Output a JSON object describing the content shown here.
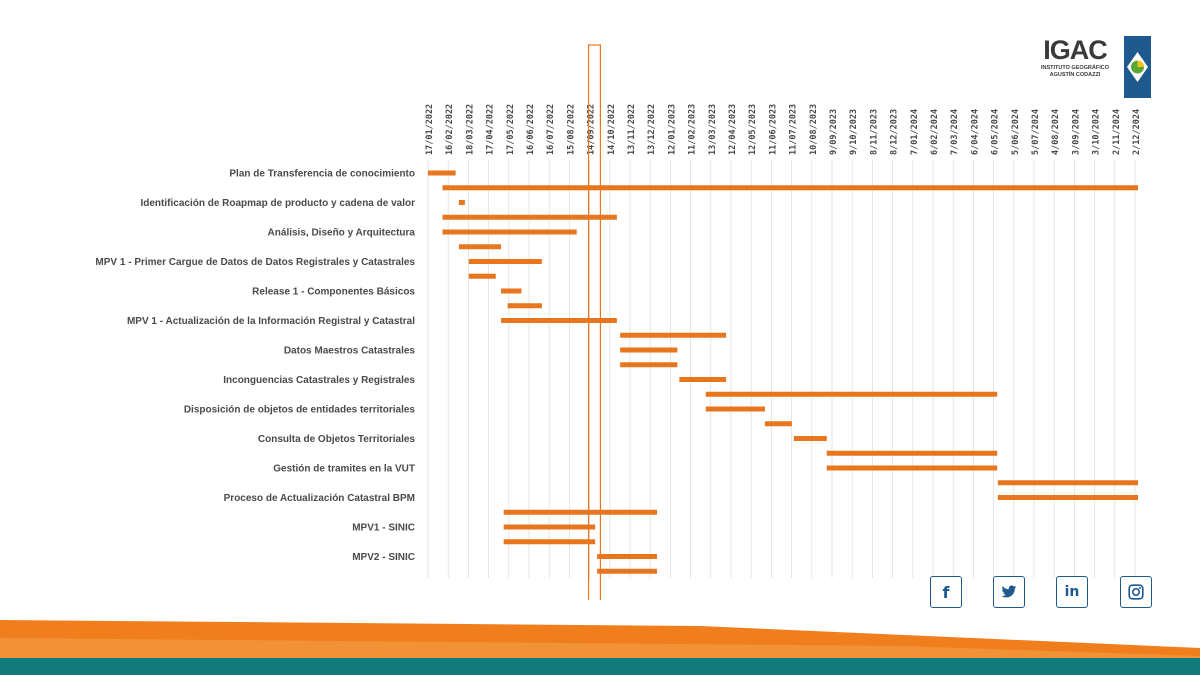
{
  "logo": {
    "name": "IGAC",
    "line1": "INSTITUTO GEOGRÁFICO",
    "line2": "AGUSTÍN CODAZZI",
    "colors": {
      "blue": "#1f5a8f",
      "green": "#5aa832",
      "yellow": "#f0c419"
    }
  },
  "colors": {
    "bar": "#e8761e",
    "highlight": "#e8761e",
    "text": "#4a4a4a",
    "grid": "#dcdcdc",
    "footer_teal": "#127a78",
    "footer_orange": "#f07e1c"
  },
  "chart_data": {
    "type": "gantt",
    "date_ticks": [
      "17/01/2022",
      "16/02/2022",
      "18/03/2022",
      "17/04/2022",
      "17/05/2022",
      "16/06/2022",
      "16/07/2022",
      "15/08/2022",
      "14/09/2022",
      "14/10/2022",
      "13/11/2022",
      "13/12/2022",
      "12/01/2023",
      "11/02/2023",
      "13/03/2023",
      "12/04/2023",
      "12/05/2023",
      "11/06/2023",
      "11/07/2023",
      "10/08/2023",
      "9/09/2023",
      "9/10/2023",
      "8/11/2023",
      "8/12/2023",
      "7/01/2024",
      "6/02/2024",
      "7/03/2024",
      "6/04/2024",
      "6/05/2024",
      "5/06/2024",
      "5/07/2024",
      "4/08/2024",
      "3/09/2024",
      "3/10/2024",
      "2/11/2024",
      "2/12/2024"
    ],
    "rows": [
      {
        "label": "Plan de Transferencia de conocimiento",
        "start": "2022-01-17",
        "end": "2022-02-28"
      },
      {
        "label": "",
        "start": "2022-02-08",
        "end": "2024-12-31"
      },
      {
        "label": "Identificación de Roapmap de producto y cadena de valor",
        "start": "2022-03-05",
        "end": "2022-03-14"
      },
      {
        "label": "",
        "start": "2022-02-08",
        "end": "2022-10-31"
      },
      {
        "label": "Análisis, Diseño y Arquitectura",
        "start": "2022-02-08",
        "end": "2022-08-31"
      },
      {
        "label": "",
        "start": "2022-03-05",
        "end": "2022-05-08"
      },
      {
        "label": "MPV 1 - Primer Cargue de Datos de Datos Registrales y Catastrales",
        "start": "2022-03-20",
        "end": "2022-07-09"
      },
      {
        "label": "",
        "start": "2022-03-20",
        "end": "2022-04-30"
      },
      {
        "label": "Release 1 - Componentes Básicos",
        "start": "2022-05-08",
        "end": "2022-06-08"
      },
      {
        "label": "",
        "start": "2022-05-18",
        "end": "2022-07-09"
      },
      {
        "label": "MPV 1 - Actualización de la Información Registral y Catastral",
        "start": "2022-05-08",
        "end": "2022-10-31"
      },
      {
        "label": "",
        "start": "2022-11-05",
        "end": "2023-04-15"
      },
      {
        "label": "Datos Maestros Catastrales",
        "start": "2022-11-05",
        "end": "2023-01-31"
      },
      {
        "label": "",
        "start": "2022-11-05",
        "end": "2023-01-31"
      },
      {
        "label": "Inconguencias Catastrales y Registrales",
        "start": "2023-02-03",
        "end": "2023-04-15"
      },
      {
        "label": "",
        "start": "2023-03-15",
        "end": "2024-05-31"
      },
      {
        "label": "Disposición de objetos de entidades territoriales",
        "start": "2023-03-15",
        "end": "2023-06-13"
      },
      {
        "label": "",
        "start": "2023-06-13",
        "end": "2023-07-24"
      },
      {
        "label": "Consulta de Objetos Territoriales",
        "start": "2023-07-27",
        "end": "2023-09-15"
      },
      {
        "label": "",
        "start": "2023-09-15",
        "end": "2024-05-31"
      },
      {
        "label": "Gestión de tramites en la VUT",
        "start": "2023-09-15",
        "end": "2024-05-31"
      },
      {
        "label": "",
        "start": "2024-06-01",
        "end": "2024-12-31"
      },
      {
        "label": "Proceso de Actualización Catastral BPM",
        "start": "2024-06-01",
        "end": "2024-12-31"
      },
      {
        "label": "",
        "start": "2022-05-12",
        "end": "2022-12-31"
      },
      {
        "label": "MPV1 - SINIC",
        "start": "2022-05-12",
        "end": "2022-09-28"
      },
      {
        "label": "",
        "start": "2022-05-12",
        "end": "2022-09-28"
      },
      {
        "label": "MPV2 - SINIC",
        "start": "2022-10-01",
        "end": "2022-12-31"
      },
      {
        "label": "",
        "start": "2022-10-01",
        "end": "2022-12-31"
      }
    ],
    "today_marker": {
      "start": "2022-09-18",
      "end": "2022-10-06"
    },
    "grid": true
  },
  "social": [
    {
      "name": "facebook",
      "glyph": "f"
    },
    {
      "name": "twitter",
      "glyph": "twitter-bird"
    },
    {
      "name": "linkedin",
      "glyph": "in"
    },
    {
      "name": "instagram",
      "glyph": "instagram-camera"
    }
  ]
}
